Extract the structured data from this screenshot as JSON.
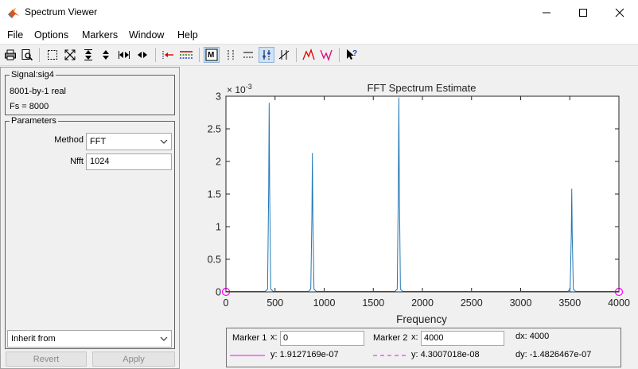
{
  "window": {
    "title": "Spectrum Viewer"
  },
  "menu": [
    "File",
    "Options",
    "Markers",
    "Window",
    "Help"
  ],
  "signal": {
    "legend": "Signal:sig4",
    "line1": "8001-by-1 real",
    "line2": "Fs = 8000"
  },
  "parameters": {
    "legend": "Parameters",
    "method_label": "Method",
    "method_value": "FFT",
    "nfft_label": "Nfft",
    "nfft_value": "1024",
    "inherit_value": "Inherit from",
    "revert_label": "Revert",
    "apply_label": "Apply"
  },
  "chart_data": {
    "type": "line",
    "title": "FFT Spectrum Estimate",
    "xlabel": "Frequency",
    "ylabel": "",
    "exponent_label": "× 10",
    "exponent_power": "-3",
    "xlim": [
      0,
      4000
    ],
    "ylim": [
      0,
      3
    ],
    "xticks": [
      0,
      500,
      1000,
      1500,
      2000,
      2500,
      3000,
      3500,
      4000
    ],
    "yticks": [
      0,
      0.5,
      1,
      1.5,
      2,
      2.5,
      3
    ],
    "peaks": [
      {
        "x": 440,
        "y": 2.9
      },
      {
        "x": 880,
        "y": 2.13
      },
      {
        "x": 1760,
        "y": 2.98
      },
      {
        "x": 3520,
        "y": 1.58
      }
    ],
    "series_color": "#1f77b4",
    "marker_color": "#ff00ff"
  },
  "markers": {
    "m1_label": "Marker 1",
    "m1_x_label": "x:",
    "m1_x_value": "0",
    "m2_label": "Marker 2",
    "m2_x_label": "x:",
    "m2_x_value": "4000",
    "dx": "dx:  4000",
    "m1_y": "y:  1.9127169e-07",
    "m2_y": "y:  4.3007018e-08",
    "dy": "dy:  -1.4826467e-07"
  }
}
